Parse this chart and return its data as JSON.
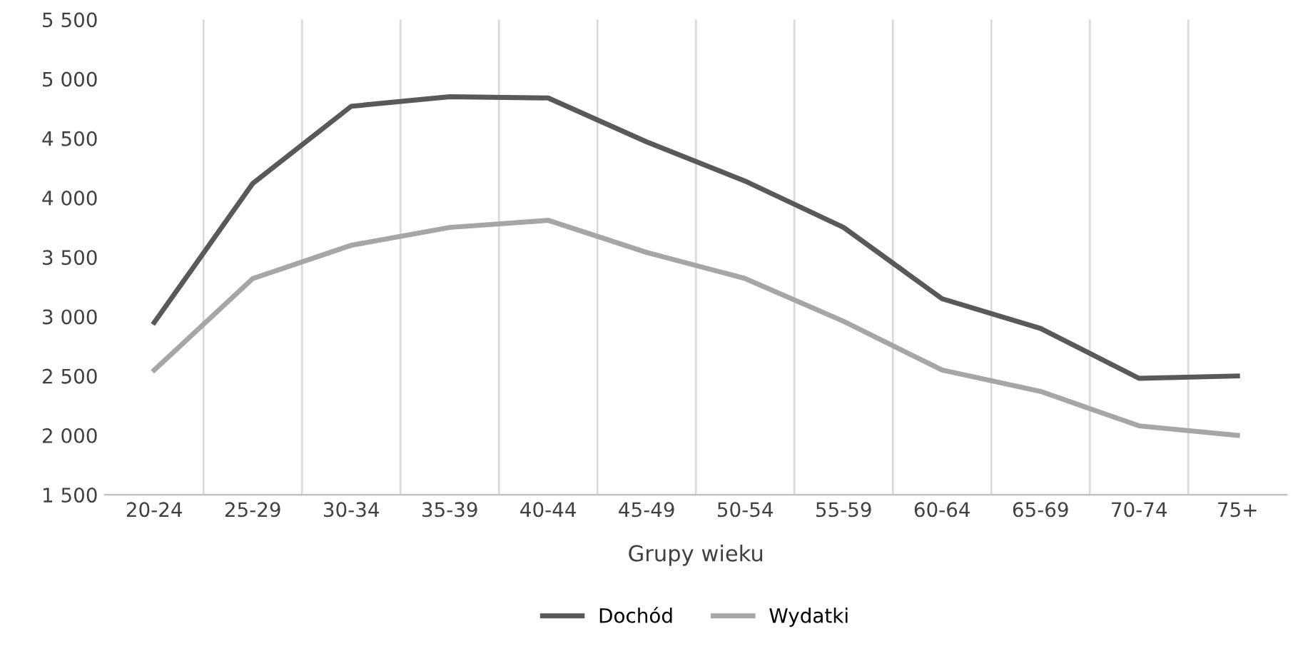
{
  "chart_data": {
    "type": "line",
    "xlabel": "Grupy wieku",
    "categories": [
      "20-24",
      "25-29",
      "30-34",
      "35-39",
      "40-44",
      "45-49",
      "50-54",
      "55-59",
      "60-64",
      "65-69",
      "70-74",
      "75+"
    ],
    "series": [
      {
        "name": "Dochód",
        "color": "#595959",
        "values": [
          2950,
          4120,
          4770,
          4850,
          4840,
          4470,
          4140,
          3750,
          3150,
          2900,
          2480,
          2500
        ]
      },
      {
        "name": "Wydatki",
        "color": "#a6a6a6",
        "values": [
          2550,
          3320,
          3600,
          3750,
          3810,
          3540,
          3320,
          2960,
          2550,
          2370,
          2080,
          2000
        ]
      }
    ],
    "ylim": [
      1500,
      5500
    ],
    "yticks": [
      {
        "value": 1500,
        "label": "1 500"
      },
      {
        "value": 2000,
        "label": "2 000"
      },
      {
        "value": 2500,
        "label": "2 500"
      },
      {
        "value": 3000,
        "label": "3 000"
      },
      {
        "value": 3500,
        "label": "3 500"
      },
      {
        "value": 4000,
        "label": "4 000"
      },
      {
        "value": 4500,
        "label": "4 500"
      },
      {
        "value": 5000,
        "label": "5 000"
      },
      {
        "value": 5500,
        "label": "5 500"
      }
    ],
    "grid": "x",
    "legend": "bottom",
    "marker": "none",
    "line_style": "solid"
  }
}
